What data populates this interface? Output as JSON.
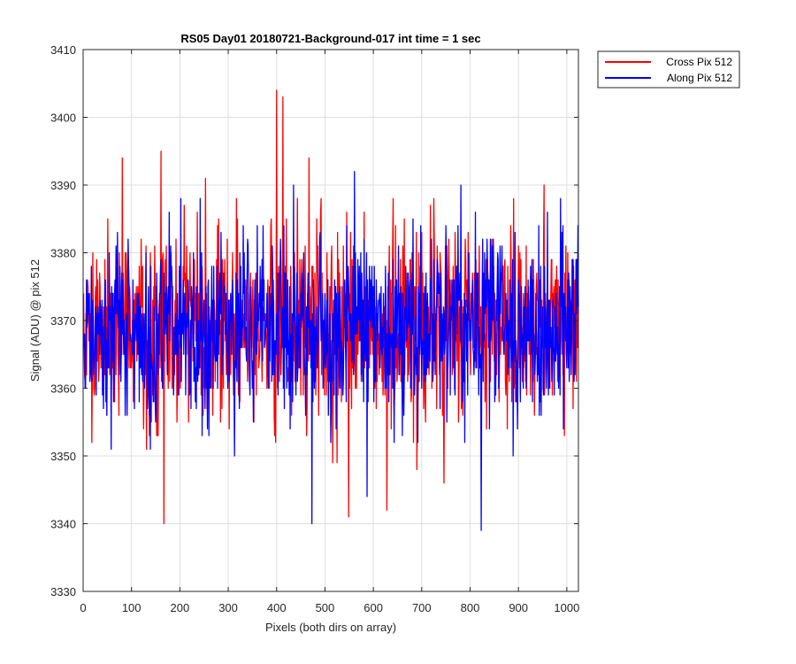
{
  "chart_data": {
    "type": "line",
    "title": "RS05 Day01 20180721-Background-017 int time = 1 sec",
    "xlabel": "Pixels (both dirs on array)",
    "ylabel": "Signal (ADU) @ pix 512",
    "xlim": [
      0,
      1024
    ],
    "ylim": [
      3330,
      3410
    ],
    "xticks": [
      0,
      100,
      200,
      300,
      400,
      500,
      600,
      700,
      800,
      900,
      1000
    ],
    "yticks": [
      3330,
      3340,
      3350,
      3360,
      3370,
      3380,
      3390,
      3400,
      3410
    ],
    "grid": true,
    "legend_position": "outside-top-right",
    "noise_model": {
      "n_points": 1024,
      "mean": 3369,
      "std": 7,
      "seed_cross": 1337,
      "seed_along": 4242
    },
    "series": [
      {
        "name": "Cross Pix 512",
        "color": "#ff0000",
        "anchors": [
          [
            80,
            3394
          ],
          [
            160,
            3395
          ],
          [
            166,
            3340
          ],
          [
            252,
            3391
          ],
          [
            399,
            3404
          ],
          [
            412,
            3403
          ],
          [
            466,
            3394
          ],
          [
            548,
            3341
          ],
          [
            627,
            3342
          ],
          [
            952,
            3390
          ]
        ]
      },
      {
        "name": "Along Pix 512",
        "color": "#0000ff",
        "anchors": [
          [
            434,
            3390
          ],
          [
            472,
            3340
          ],
          [
            560,
            3392
          ],
          [
            586,
            3344
          ],
          [
            780,
            3390
          ],
          [
            822,
            3339
          ]
        ]
      }
    ]
  }
}
